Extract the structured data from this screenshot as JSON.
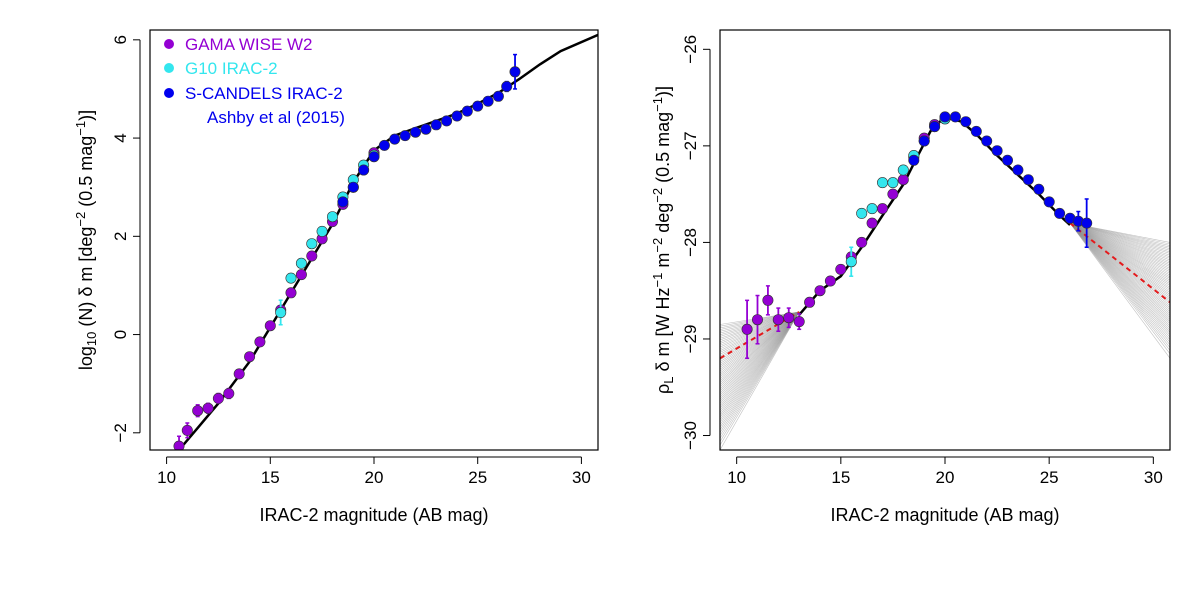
{
  "colors": {
    "gama": "#9400D3",
    "g10": "#33E6EE",
    "scandels": "#0000EE",
    "model": "#000000",
    "bootstrap": "#8c8c8c",
    "bestfit": "#E41A1C"
  },
  "legend": {
    "gama_label": "GAMA WISE W2",
    "g10_label": "G10 IRAC-2",
    "scandels_label": "S-CANDELS IRAC-2",
    "scandels_ref": "Ashby et al (2015)"
  },
  "chart_data": [
    {
      "type": "scatter",
      "title": "",
      "xlabel": "IRAC-2 magnitude (AB mag)",
      "ylabel_parts": {
        "a": "log",
        "sub1": "10",
        "b": " (N) δ m [deg",
        "sup1": "−2",
        "c": " (0.5 mag",
        "sup2": "−1",
        "d": ")]"
      },
      "xlim": [
        9.2,
        30.8
      ],
      "ylim": [
        -2.35,
        6.2
      ],
      "xticks": [
        10,
        15,
        20,
        25,
        30
      ],
      "yticks": [
        -2,
        0,
        2,
        4,
        6
      ],
      "xtick_labels": [
        "10",
        "15",
        "20",
        "25",
        "30"
      ],
      "ytick_labels": [
        "−2",
        "0",
        "2",
        "4",
        "6"
      ],
      "model_line": {
        "x": [
          9.2,
          10.6,
          11.5,
          12.5,
          14.0,
          15.5,
          17.0,
          18.0,
          19.0,
          20.0,
          21.0,
          22.0,
          23.0,
          24.0,
          25.0,
          26.0,
          27.0,
          28.0,
          29.0,
          30.8
        ],
        "y": [
          -3.0,
          -2.35,
          -1.9,
          -1.4,
          -0.55,
          0.5,
          1.55,
          2.25,
          3.1,
          3.75,
          4.05,
          4.2,
          4.35,
          4.5,
          4.7,
          4.92,
          5.2,
          5.5,
          5.77,
          6.1
        ]
      },
      "series": [
        {
          "name": "GAMA WISE W2",
          "color_key": "gama",
          "points": [
            [
              10.6,
              -2.27,
              0.2
            ],
            [
              11.0,
              -1.95,
              0.15
            ],
            [
              11.5,
              -1.55,
              0.12
            ],
            [
              12.0,
              -1.5,
              0.1
            ],
            [
              12.5,
              -1.3,
              0.1
            ],
            [
              13.0,
              -1.2,
              0.1
            ],
            [
              13.5,
              -0.8,
              0
            ],
            [
              14.0,
              -0.45,
              0
            ],
            [
              14.5,
              -0.15,
              0
            ],
            [
              15.0,
              0.18,
              0
            ],
            [
              15.5,
              0.5,
              0
            ],
            [
              16.0,
              0.85,
              0
            ],
            [
              16.5,
              1.22,
              0
            ],
            [
              17.0,
              1.6,
              0
            ],
            [
              17.5,
              1.95,
              0
            ],
            [
              18.0,
              2.3,
              0
            ],
            [
              18.5,
              2.65,
              0
            ],
            [
              19.0,
              3.0,
              0
            ],
            [
              19.5,
              3.35,
              0
            ],
            [
              20.0,
              3.7,
              0
            ]
          ]
        },
        {
          "name": "G10 IRAC-2",
          "color_key": "g10",
          "points": [
            [
              15.5,
              0.45,
              0.25
            ],
            [
              16.0,
              1.15,
              0
            ],
            [
              16.5,
              1.45,
              0
            ],
            [
              17.0,
              1.85,
              0
            ],
            [
              17.5,
              2.1,
              0
            ],
            [
              18.0,
              2.4,
              0
            ],
            [
              18.5,
              2.8,
              0
            ],
            [
              19.0,
              3.15,
              0
            ],
            [
              19.5,
              3.45,
              0
            ],
            [
              20.0,
              3.65,
              0
            ]
          ]
        },
        {
          "name": "S-CANDELS IRAC-2",
          "color_key": "scandels",
          "points": [
            [
              18.5,
              2.7,
              0
            ],
            [
              19.0,
              3.0,
              0
            ],
            [
              19.5,
              3.35,
              0
            ],
            [
              20.0,
              3.62,
              0
            ],
            [
              20.5,
              3.85,
              0
            ],
            [
              21.0,
              3.98,
              0
            ],
            [
              21.5,
              4.05,
              0
            ],
            [
              22.0,
              4.12,
              0
            ],
            [
              22.5,
              4.18,
              0
            ],
            [
              23.0,
              4.27,
              0
            ],
            [
              23.5,
              4.35,
              0
            ],
            [
              24.0,
              4.45,
              0
            ],
            [
              24.5,
              4.55,
              0
            ],
            [
              25.0,
              4.65,
              0
            ],
            [
              25.5,
              4.75,
              0
            ],
            [
              26.0,
              4.85,
              0
            ],
            [
              26.4,
              5.05,
              0.1
            ],
            [
              26.8,
              5.35,
              0.35
            ]
          ]
        }
      ]
    },
    {
      "type": "scatter",
      "title": "",
      "xlabel": "IRAC-2 magnitude (AB mag)",
      "ylabel_parts": {
        "a": "ρ",
        "sub1": "L",
        "b": " δ m [W Hz",
        "sup1": "−1",
        "c": " m",
        "sup2": "−2",
        "d": " deg",
        "sup3": "−2",
        "e": " (0.5 mag",
        "sup4": "−1",
        "f": ")]"
      },
      "xlim": [
        9.2,
        30.8
      ],
      "ylim": [
        -30.15,
        -25.8
      ],
      "xticks": [
        10,
        15,
        20,
        25,
        30
      ],
      "yticks": [
        -30,
        -29,
        -28,
        -27,
        -26
      ],
      "xtick_labels": [
        "10",
        "15",
        "20",
        "25",
        "30"
      ],
      "ytick_labels": [
        "−30",
        "−29",
        "−28",
        "−27",
        "−26"
      ],
      "model_line": {
        "x": [
          13.0,
          14.0,
          15.0,
          16.0,
          17.0,
          18.0,
          18.7,
          19.3,
          19.8,
          20.3,
          20.8,
          21.5,
          22.5,
          23.5,
          24.5,
          25.5,
          26.0
        ],
        "y": [
          -28.75,
          -28.5,
          -28.35,
          -28.05,
          -27.72,
          -27.4,
          -27.1,
          -26.85,
          -26.74,
          -26.72,
          -26.75,
          -26.88,
          -27.1,
          -27.3,
          -27.5,
          -27.72,
          -27.82
        ]
      },
      "bestfit_line": {
        "x": [
          9.2,
          13.0,
          26.0,
          30.8
        ],
        "y": [
          -29.2,
          -28.72,
          -27.8,
          -28.62
        ]
      },
      "fan_left": {
        "pivot": [
          13.0,
          -28.72
        ],
        "x_end": 9.2,
        "y_min": -30.15,
        "y_max": -28.85
      },
      "fan_right": {
        "pivot": [
          26.0,
          -27.8
        ],
        "x_end": 30.8,
        "y_min": -29.2,
        "y_max": -28.0
      },
      "series": [
        {
          "name": "GAMA WISE W2",
          "color_key": "gama",
          "points": [
            [
              10.5,
              -28.9,
              0.3
            ],
            [
              11.0,
              -28.8,
              0.25
            ],
            [
              11.5,
              -28.6,
              0.15
            ],
            [
              12.0,
              -28.8,
              0.12
            ],
            [
              12.5,
              -28.78,
              0.1
            ],
            [
              13.0,
              -28.82,
              0.08
            ],
            [
              13.5,
              -28.62,
              0
            ],
            [
              14.0,
              -28.5,
              0
            ],
            [
              14.5,
              -28.4,
              0
            ],
            [
              15.0,
              -28.28,
              0
            ],
            [
              15.5,
              -28.15,
              0
            ],
            [
              16.0,
              -28.0,
              0
            ],
            [
              16.5,
              -27.8,
              0
            ],
            [
              17.0,
              -27.65,
              0
            ],
            [
              17.5,
              -27.5,
              0
            ],
            [
              18.0,
              -27.35,
              0
            ],
            [
              18.5,
              -27.12,
              0
            ],
            [
              19.0,
              -26.92,
              0
            ],
            [
              19.5,
              -26.78,
              0
            ],
            [
              20.0,
              -26.72,
              0
            ]
          ]
        },
        {
          "name": "G10 IRAC-2",
          "color_key": "g10",
          "points": [
            [
              15.5,
              -28.2,
              0.15
            ],
            [
              16.0,
              -27.7,
              0
            ],
            [
              16.5,
              -27.65,
              0
            ],
            [
              17.0,
              -27.38,
              0
            ],
            [
              17.5,
              -27.38,
              0
            ],
            [
              18.0,
              -27.25,
              0
            ],
            [
              18.5,
              -27.1,
              0
            ],
            [
              19.0,
              -26.95,
              0
            ],
            [
              19.5,
              -26.8,
              0
            ],
            [
              20.0,
              -26.72,
              0
            ]
          ]
        },
        {
          "name": "S-CANDELS IRAC-2",
          "color_key": "scandels",
          "points": [
            [
              18.5,
              -27.15,
              0
            ],
            [
              19.0,
              -26.95,
              0
            ],
            [
              19.5,
              -26.8,
              0
            ],
            [
              20.0,
              -26.7,
              0
            ],
            [
              20.5,
              -26.7,
              0
            ],
            [
              21.0,
              -26.75,
              0
            ],
            [
              21.5,
              -26.85,
              0
            ],
            [
              22.0,
              -26.95,
              0
            ],
            [
              22.5,
              -27.05,
              0
            ],
            [
              23.0,
              -27.15,
              0
            ],
            [
              23.5,
              -27.25,
              0
            ],
            [
              24.0,
              -27.35,
              0
            ],
            [
              24.5,
              -27.45,
              0
            ],
            [
              25.0,
              -27.58,
              0
            ],
            [
              25.5,
              -27.7,
              0
            ],
            [
              26.0,
              -27.75,
              0
            ],
            [
              26.4,
              -27.78,
              0.1
            ],
            [
              26.8,
              -27.8,
              0.25
            ]
          ]
        }
      ]
    }
  ]
}
